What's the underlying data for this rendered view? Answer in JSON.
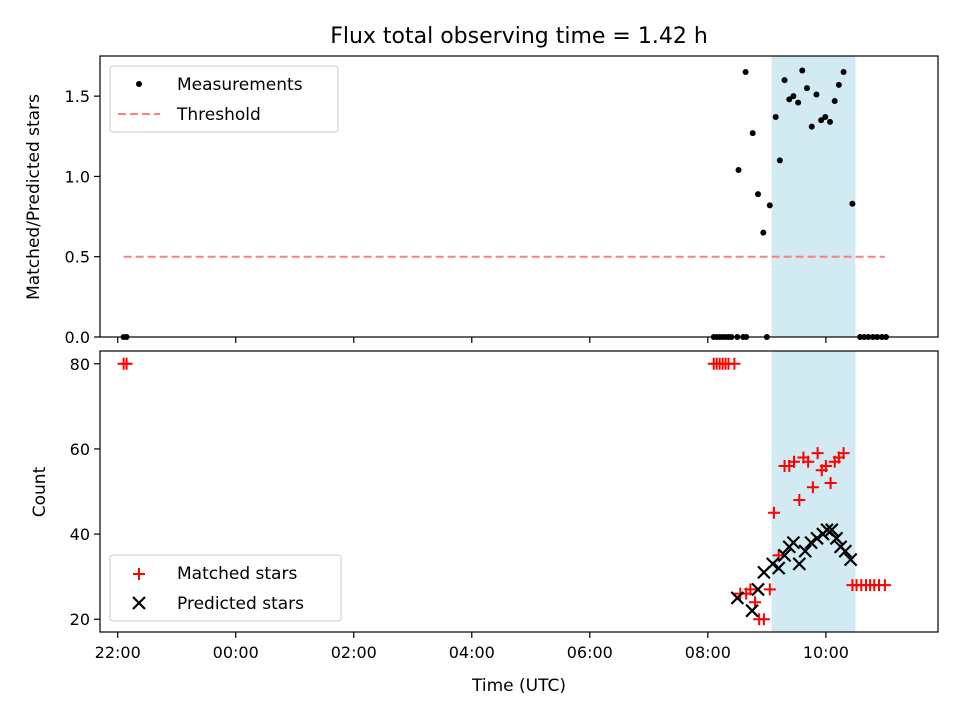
{
  "chart_data": {
    "title": "Flux total observing time = 1.42 h",
    "xlabel": "Time (UTC)",
    "x_unit": "hours relative to 00:00 UTC",
    "xlim": [
      -2.3,
      11.9
    ],
    "x_ticks": [
      {
        "value": -2,
        "label": "22:00"
      },
      {
        "value": 0,
        "label": "00:00"
      },
      {
        "value": 2,
        "label": "02:00"
      },
      {
        "value": 4,
        "label": "04:00"
      },
      {
        "value": 6,
        "label": "06:00"
      },
      {
        "value": 8,
        "label": "08:00"
      },
      {
        "value": 10,
        "label": "10:00"
      }
    ],
    "shaded_span": {
      "x0": 9.08,
      "x1": 10.5,
      "color": "#add8e6"
    },
    "panels": [
      {
        "id": "ratio",
        "type": "scatter",
        "ylabel": "Matched/Predicted stars",
        "ylim": [
          0,
          1.75
        ],
        "y_ticks": [
          {
            "value": 0.0,
            "label": "0.0"
          },
          {
            "value": 0.5,
            "label": "0.5"
          },
          {
            "value": 1.0,
            "label": "1.0"
          },
          {
            "value": 1.5,
            "label": "1.5"
          }
        ],
        "legend_position": "top-left",
        "series": [
          {
            "name": "Measurements",
            "marker": "dot",
            "color": "#000000",
            "points": [
              [
                -1.9,
                0
              ],
              [
                -1.85,
                0
              ],
              [
                8.1,
                0
              ],
              [
                8.15,
                0
              ],
              [
                8.2,
                0
              ],
              [
                8.25,
                0
              ],
              [
                8.3,
                0
              ],
              [
                8.35,
                0
              ],
              [
                8.4,
                0
              ],
              [
                8.5,
                0
              ],
              [
                8.6,
                0
              ],
              [
                8.65,
                0
              ],
              [
                9.0,
                0
              ],
              [
                8.52,
                1.04
              ],
              [
                8.64,
                1.65
              ],
              [
                8.76,
                1.27
              ],
              [
                8.85,
                0.89
              ],
              [
                8.94,
                0.65
              ],
              [
                9.05,
                0.82
              ],
              [
                9.15,
                1.37
              ],
              [
                9.22,
                1.1
              ],
              [
                9.3,
                1.6
              ],
              [
                9.38,
                1.48
              ],
              [
                9.45,
                1.5
              ],
              [
                9.53,
                1.46
              ],
              [
                9.6,
                1.66
              ],
              [
                9.68,
                1.55
              ],
              [
                9.76,
                1.31
              ],
              [
                9.84,
                1.51
              ],
              [
                9.92,
                1.35
              ],
              [
                9.99,
                1.37
              ],
              [
                10.07,
                1.34
              ],
              [
                10.15,
                1.47
              ],
              [
                10.22,
                1.57
              ],
              [
                10.3,
                1.65
              ],
              [
                10.45,
                0.83
              ],
              [
                10.58,
                0
              ],
              [
                10.65,
                0
              ],
              [
                10.72,
                0
              ],
              [
                10.8,
                0
              ],
              [
                10.87,
                0
              ],
              [
                10.95,
                0
              ],
              [
                11.02,
                0
              ]
            ]
          },
          {
            "name": "Threshold",
            "type": "line",
            "style": "dashed",
            "color": "#ff7f7f",
            "x": [
              -1.9,
              11.0
            ],
            "y": [
              0.5,
              0.5
            ]
          }
        ]
      },
      {
        "id": "counts",
        "type": "scatter",
        "ylabel": "Count",
        "ylim": [
          17,
          83
        ],
        "y_ticks": [
          {
            "value": 20,
            "label": "20"
          },
          {
            "value": 40,
            "label": "40"
          },
          {
            "value": 60,
            "label": "60"
          },
          {
            "value": 80,
            "label": "80"
          }
        ],
        "legend_position": "bottom-left",
        "series": [
          {
            "name": "Matched stars",
            "marker": "plus",
            "color": "#ff0000",
            "points": [
              [
                -1.9,
                80
              ],
              [
                -1.85,
                80
              ],
              [
                8.1,
                80
              ],
              [
                8.15,
                80
              ],
              [
                8.2,
                80
              ],
              [
                8.25,
                80
              ],
              [
                8.3,
                80
              ],
              [
                8.35,
                80
              ],
              [
                8.45,
                80
              ],
              [
                8.55,
                26
              ],
              [
                8.65,
                26
              ],
              [
                8.72,
                27
              ],
              [
                8.8,
                24
              ],
              [
                8.87,
                20
              ],
              [
                8.95,
                20
              ],
              [
                9.05,
                27
              ],
              [
                9.12,
                45
              ],
              [
                9.2,
                35
              ],
              [
                9.3,
                56
              ],
              [
                9.38,
                56
              ],
              [
                9.46,
                57
              ],
              [
                9.55,
                48
              ],
              [
                9.62,
                58
              ],
              [
                9.7,
                57
              ],
              [
                9.78,
                51
              ],
              [
                9.86,
                59
              ],
              [
                9.93,
                55
              ],
              [
                10.0,
                56
              ],
              [
                10.08,
                52
              ],
              [
                10.15,
                57
              ],
              [
                10.22,
                58
              ],
              [
                10.3,
                59
              ],
              [
                10.45,
                28
              ],
              [
                10.52,
                28
              ],
              [
                10.6,
                28
              ],
              [
                10.68,
                28
              ],
              [
                10.75,
                28
              ],
              [
                10.82,
                28
              ],
              [
                10.9,
                28
              ],
              [
                11.0,
                28
              ]
            ]
          },
          {
            "name": "Predicted stars",
            "marker": "x",
            "color": "#000000",
            "points": [
              [
                8.5,
                25
              ],
              [
                8.75,
                22
              ],
              [
                8.85,
                27
              ],
              [
                8.95,
                31
              ],
              [
                9.1,
                33
              ],
              [
                9.2,
                32
              ],
              [
                9.3,
                35
              ],
              [
                9.38,
                37
              ],
              [
                9.45,
                38
              ],
              [
                9.55,
                33
              ],
              [
                9.65,
                36
              ],
              [
                9.75,
                38
              ],
              [
                9.85,
                39
              ],
              [
                9.95,
                40
              ],
              [
                10.02,
                41
              ],
              [
                10.1,
                41
              ],
              [
                10.18,
                39
              ],
              [
                10.25,
                37
              ],
              [
                10.33,
                36
              ],
              [
                10.42,
                34
              ]
            ]
          }
        ]
      }
    ]
  }
}
